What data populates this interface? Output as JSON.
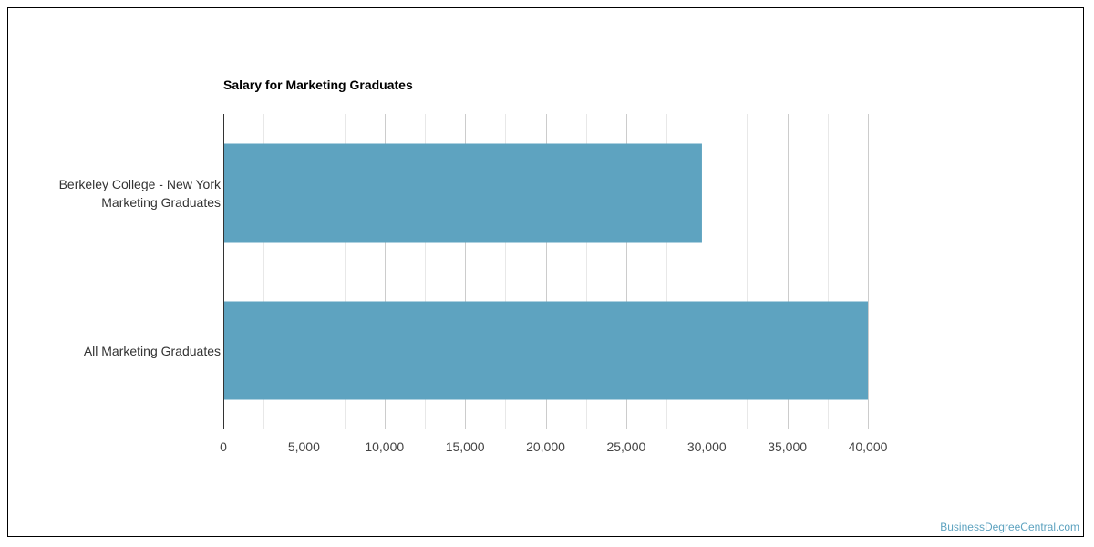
{
  "chart_data": {
    "type": "bar",
    "orientation": "horizontal",
    "title": "Salary for Marketing Graduates",
    "categories": [
      "Berkeley College - New York Marketing Graduates",
      "All Marketing Graduates"
    ],
    "category_lines": [
      [
        "Berkeley College - New York",
        "Marketing Graduates"
      ],
      [
        "All Marketing Graduates"
      ]
    ],
    "values": [
      29700,
      40000
    ],
    "xlim": [
      0,
      40000
    ],
    "xticks": [
      "0",
      "5,000",
      "10,000",
      "15,000",
      "20,000",
      "25,000",
      "30,000",
      "35,000",
      "40,000"
    ],
    "grid": true,
    "bar_color": "#5ea3c0"
  },
  "watermark": {
    "text": "BusinessDegreeCentral.com",
    "color": "#5ea3c0"
  }
}
